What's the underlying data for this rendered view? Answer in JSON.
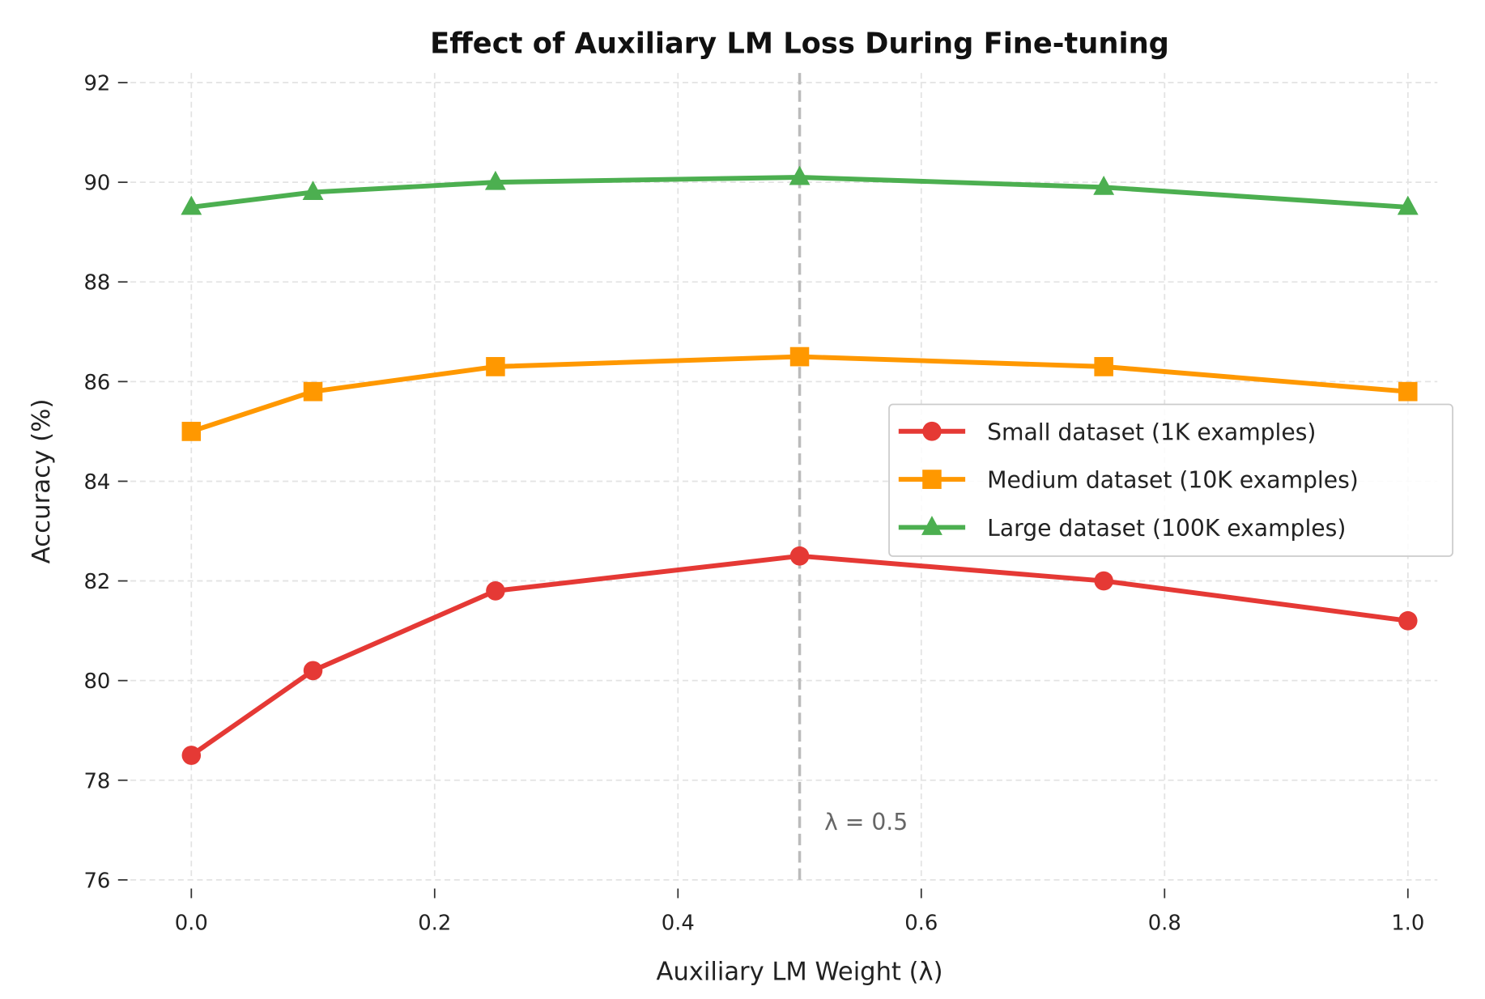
{
  "chart_data": {
    "type": "line",
    "title": "Effect of Auxiliary LM Loss During Fine-tuning",
    "xlabel": "Auxiliary LM Weight (λ)",
    "ylabel": "Accuracy (%)",
    "x": [
      0.0,
      0.1,
      0.25,
      0.5,
      0.75,
      1.0
    ],
    "xlim": [
      -0.05,
      1.05
    ],
    "ylim": [
      76,
      92
    ],
    "xticks": [
      "0.0",
      "0.2",
      "0.4",
      "0.6",
      "0.8",
      "1.0"
    ],
    "yticks": [
      "76",
      "78",
      "80",
      "82",
      "84",
      "86",
      "88",
      "90",
      "92"
    ],
    "grid": true,
    "legend_position": "center-right",
    "series": [
      {
        "name": "Small dataset (1K examples)",
        "color": "#e53935",
        "marker": "circle",
        "values": [
          78.5,
          80.2,
          81.8,
          82.5,
          82.0,
          81.2
        ]
      },
      {
        "name": "Medium dataset (10K examples)",
        "color": "#ff9800",
        "marker": "square",
        "values": [
          85.0,
          85.8,
          86.3,
          86.5,
          86.3,
          85.8
        ]
      },
      {
        "name": "Large dataset (100K examples)",
        "color": "#4caf50",
        "marker": "triangle",
        "values": [
          89.5,
          89.8,
          90.0,
          90.1,
          89.9,
          89.5
        ]
      }
    ],
    "annotations": [
      {
        "type": "vline",
        "x": 0.5,
        "color": "#bbbbbb",
        "style": "dashed",
        "label": "λ = 0.5"
      }
    ]
  }
}
